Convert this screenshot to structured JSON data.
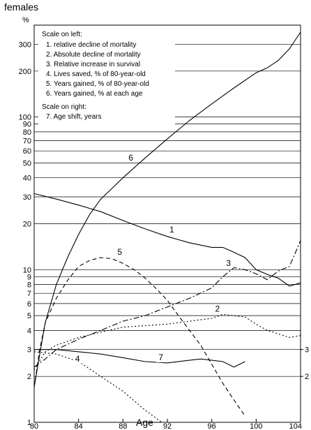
{
  "chart_data": {
    "type": "line",
    "title": "females",
    "ylabel_left": "%",
    "xlabel": "Age",
    "xlim": [
      80,
      104
    ],
    "ylim_left": [
      1,
      400
    ],
    "y_scale": "log",
    "ylim_right": [
      1,
      400
    ],
    "grid": "horizontal",
    "x_ticks": [
      "80",
      "84",
      "88",
      "92",
      "96",
      "100",
      "104"
    ],
    "y_ticks_left": [
      {
        "v": 1,
        "label": "1"
      },
      {
        "v": 2,
        "label": "2"
      },
      {
        "v": 3,
        "label": "3"
      },
      {
        "v": 4,
        "label": "4"
      },
      {
        "v": 5,
        "label": "5"
      },
      {
        "v": 6,
        "label": "6"
      },
      {
        "v": 7,
        "label": "7"
      },
      {
        "v": 8,
        "label": "8"
      },
      {
        "v": 9,
        "label": "9"
      },
      {
        "v": 10,
        "label": "10"
      },
      {
        "v": 20,
        "label": "20"
      },
      {
        "v": 30,
        "label": "30"
      },
      {
        "v": 40,
        "label": "40"
      },
      {
        "v": 50,
        "label": "50"
      },
      {
        "v": 60,
        "label": "60"
      },
      {
        "v": 70,
        "label": "70"
      },
      {
        "v": 80,
        "label": "80"
      },
      {
        "v": 90,
        "label": "90"
      },
      {
        "v": 100,
        "label": "100"
      },
      {
        "v": 200,
        "label": "200"
      },
      {
        "v": 300,
        "label": "300"
      }
    ],
    "y_ticks_right": [
      {
        "v": 2,
        "label": "2"
      },
      {
        "v": 3,
        "label": "3"
      }
    ],
    "legend": {
      "placement": "top-left",
      "heading_left": "Scale on left:",
      "items_left": [
        "1. relative decline of mortality",
        "2. Absolute decline of mortality",
        "3. Relative increase in survival",
        "4. Lives saved, % of 80-year-old",
        "5. Years gained, % of 80-year-old",
        "6. Years gained, % at each age"
      ],
      "heading_right": "Scale on right:",
      "items_right": [
        "7. Age shift, years"
      ]
    },
    "series": [
      {
        "name": "1",
        "style": "solid",
        "axis": "left",
        "label_at": [
          92.2,
          17.5
        ],
        "x": [
          80,
          82,
          84,
          86,
          88,
          90,
          92,
          94,
          96,
          97,
          98,
          99,
          100,
          101,
          102,
          103,
          104
        ],
        "y": [
          31.5,
          29,
          26.5,
          24,
          21,
          18.5,
          16.5,
          15,
          14,
          14,
          13,
          12,
          10,
          9.3,
          8.8,
          7.8,
          8.2
        ]
      },
      {
        "name": "2",
        "style": "dotted",
        "axis": "left",
        "label_at": [
          96.3,
          5.3
        ],
        "x": [
          80,
          81,
          82,
          84,
          86,
          88,
          90,
          92,
          94,
          96,
          97,
          98,
          99,
          100,
          101,
          102,
          103,
          104
        ],
        "y": [
          2.2,
          2.9,
          3.2,
          3.6,
          3.9,
          4.2,
          4.3,
          4.4,
          4.6,
          4.8,
          5.1,
          5.0,
          4.9,
          4.4,
          4.0,
          3.8,
          3.6,
          3.7
        ]
      },
      {
        "name": "3",
        "style": "dashdot",
        "axis": "left",
        "label_at": [
          97.3,
          10.6
        ],
        "x": [
          80,
          81,
          82,
          84,
          86,
          88,
          90,
          92,
          94,
          96,
          97,
          98,
          99,
          100,
          101,
          102,
          103,
          104
        ],
        "y": [
          2.3,
          2.6,
          3.0,
          3.5,
          4.0,
          4.6,
          5.0,
          5.7,
          6.5,
          7.6,
          9.0,
          10.3,
          10.0,
          9.4,
          8.6,
          9.8,
          10.5,
          15.5
        ]
      },
      {
        "name": "4",
        "style": "dotted",
        "axis": "left",
        "label_at": [
          83.7,
          2.5
        ],
        "x": [
          80,
          82,
          84,
          86,
          88,
          90,
          91.5
        ],
        "y": [
          2.9,
          2.8,
          2.5,
          2.0,
          1.6,
          1.2,
          1.0
        ]
      },
      {
        "name": "5",
        "style": "dashed",
        "axis": "left",
        "label_at": [
          87.5,
          12.5
        ],
        "x": [
          80,
          80.5,
          81,
          82,
          83,
          84,
          85,
          86,
          87,
          88,
          89,
          90,
          91,
          92,
          93,
          94,
          95,
          96,
          97,
          98,
          99
        ],
        "y": [
          1.7,
          3.0,
          4.5,
          6.5,
          8.5,
          10.5,
          11.5,
          12.0,
          11.8,
          11.0,
          10.0,
          8.8,
          7.5,
          6.3,
          5.0,
          4.0,
          3.2,
          2.4,
          1.8,
          1.4,
          1.1
        ]
      },
      {
        "name": "6",
        "style": "solid",
        "axis": "left",
        "label_at": [
          88.5,
          52
        ],
        "x": [
          80,
          80.5,
          81,
          82,
          83,
          84,
          85,
          86,
          87,
          88,
          90,
          92,
          94,
          96,
          98,
          100,
          101,
          102,
          103,
          104
        ],
        "y": [
          1.7,
          2.8,
          4.5,
          8.0,
          12.0,
          17.0,
          23.0,
          29.0,
          34.0,
          40.0,
          54.0,
          72.0,
          95.0,
          122.0,
          155.0,
          195.0,
          210.0,
          235.0,
          280.0,
          360.0
        ]
      },
      {
        "name": "7",
        "style": "solid",
        "axis": "right",
        "label_at": [
          91.2,
          2.55
        ],
        "x": [
          80,
          82,
          84,
          86,
          88,
          90,
          92,
          94,
          95,
          96,
          97,
          98,
          99
        ],
        "y": [
          3.0,
          3.0,
          2.9,
          2.8,
          2.65,
          2.5,
          2.45,
          2.55,
          2.6,
          2.55,
          2.5,
          2.3,
          2.5
        ]
      }
    ]
  }
}
